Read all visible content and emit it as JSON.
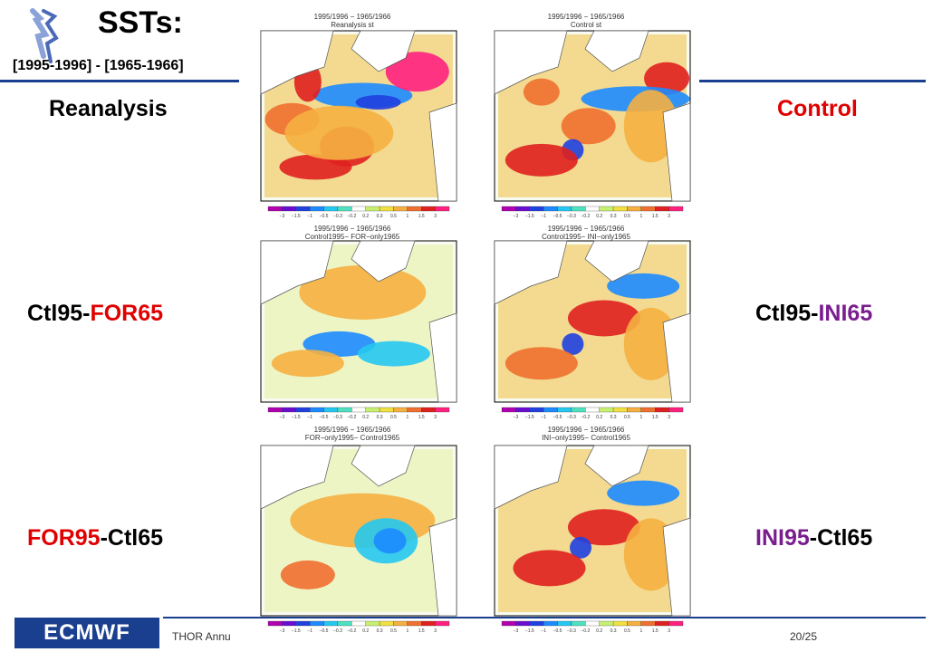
{
  "title": "SSTs:",
  "subtitle": "[1995-1996] - [1965-1966]",
  "labels": {
    "reanalysis": "Reanalysis",
    "control": "Control",
    "ctl95_for65_a": "Ctl95-",
    "ctl95_for65_b": "FOR65",
    "ctl95_ini65_a": "Ctl95-",
    "ctl95_ini65_b": "INI65",
    "for95_ctl65_a": "FOR95",
    "for95_ctl65_b": "-Ctl65",
    "ini95_ctl65_a": "INI95",
    "ini95_ctl65_b": "-Ctl65"
  },
  "maps": [
    {
      "line1": "1995/1996 − 1965/1966",
      "line2": "Reanalysis st"
    },
    {
      "line1": "1995/1996 − 1965/1966",
      "line2": "Control st"
    },
    {
      "line1": "1995/1996 − 1965/1966",
      "line2": "Control1995− FOR−only1965"
    },
    {
      "line1": "1995/1996 − 1965/1966",
      "line2": "Control1995− INI−only1965"
    },
    {
      "line1": "1995/1996 − 1965/1966",
      "line2": "FOR−only1995− Control1965"
    },
    {
      "line1": "1995/1996 − 1965/1966",
      "line2": "INI−only1995− Control1965"
    }
  ],
  "colorbar_ticks": [
    "−3",
    "−1.5",
    "−1",
    "−0.5",
    "−0.3",
    "−0.2",
    "0.2",
    "0.3",
    "0.5",
    "1",
    "1.5",
    "3"
  ],
  "colorbar_colors": [
    "#b000b0",
    "#6a0dd0",
    "#2040e0",
    "#1d8bff",
    "#25c8f0",
    "#4fe0c0",
    "#ffffff",
    "#c8f070",
    "#f0e040",
    "#f5b040",
    "#f07030",
    "#e02020",
    "#ff2080"
  ],
  "footer": {
    "logo_text": "ECMWF",
    "text": "THOR Annu",
    "page": "20/25"
  }
}
